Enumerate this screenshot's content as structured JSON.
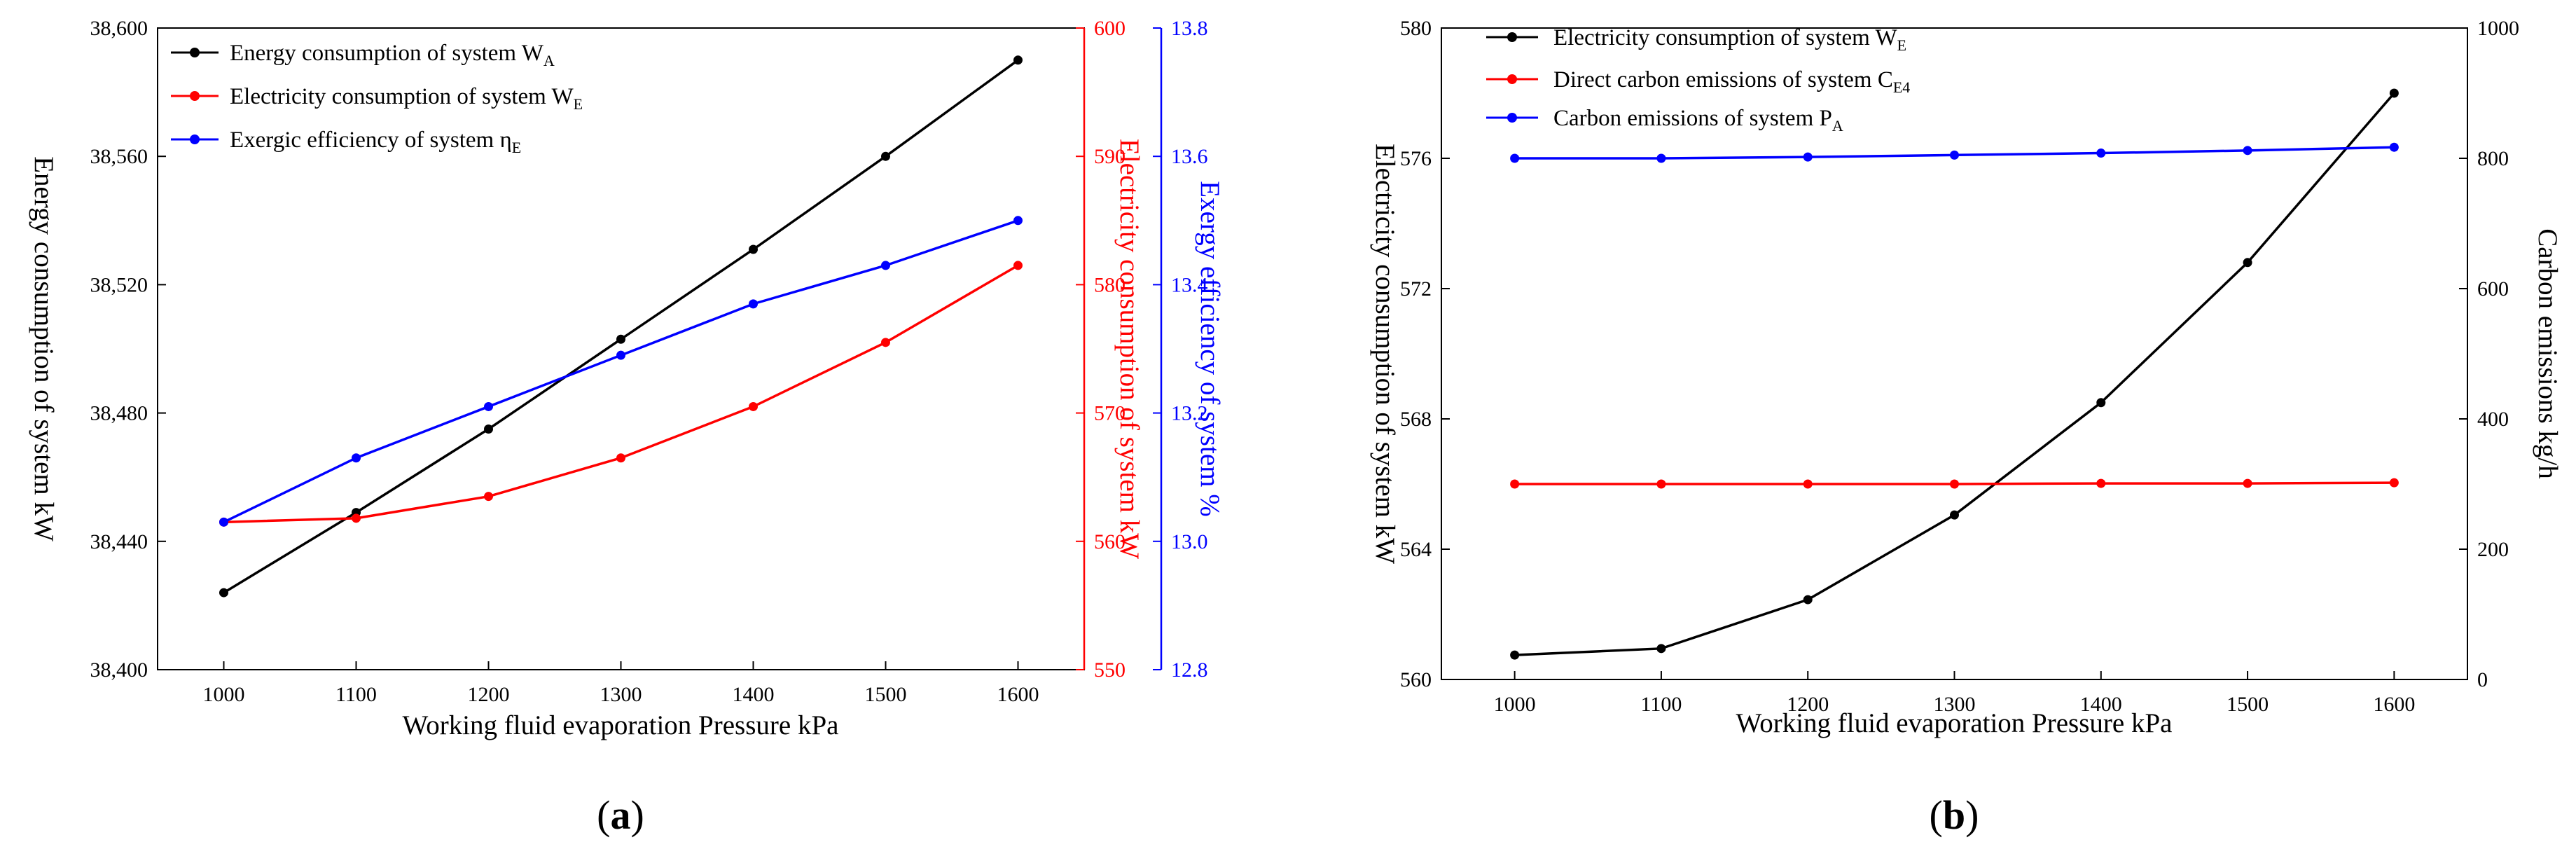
{
  "figure": {
    "panels": [
      "(a)",
      "(b)"
    ]
  },
  "chart_data": [
    {
      "type": "line",
      "panel_label": {
        "open": "(",
        "letter": "a",
        "close": ")"
      },
      "x": [
        1000,
        1100,
        1200,
        1300,
        1400,
        1500,
        1600
      ],
      "xlabel": "Working fluid evaporation Pressure kPa",
      "xlim": [
        950,
        1650
      ],
      "axes": {
        "left": {
          "label": "Energy consumption of system kW",
          "min": 38400,
          "max": 38600,
          "ticks": [
            "38,400",
            "38,440",
            "38,480",
            "38,520",
            "38,560",
            "38,600"
          ],
          "color": "#000000"
        },
        "right1": {
          "label": "Electricity consumption of system kW",
          "min": 550,
          "max": 600,
          "ticks": [
            "550",
            "560",
            "570",
            "580",
            "590",
            "600"
          ],
          "color": "#ff0000"
        },
        "right2": {
          "label": "Exergy efficiency of system %",
          "min": 12.8,
          "max": 13.8,
          "ticks": [
            "12.8",
            "13.0",
            "13.2",
            "13.4",
            "13.6",
            "13.8"
          ],
          "color": "#0000ff"
        }
      },
      "series": [
        {
          "name": "Energy consumption of system W",
          "sub": "A",
          "color": "#000000",
          "axis": "left",
          "values": [
            38424,
            38449,
            38475,
            38503,
            38531,
            38560,
            38590
          ]
        },
        {
          "name": "Electricity consumption of system W",
          "sub": "E",
          "color": "#ff0000",
          "axis": "right1",
          "values": [
            561.5,
            561.8,
            563.5,
            566.5,
            570.5,
            575.5,
            581.5
          ]
        },
        {
          "name": "Exergic efficiency of system η",
          "sub": "E",
          "color": "#0000ff",
          "axis": "right2",
          "values": [
            13.03,
            13.13,
            13.21,
            13.29,
            13.37,
            13.43,
            13.5
          ]
        }
      ],
      "legend": "top-left",
      "grid": false
    },
    {
      "type": "line",
      "panel_label": {
        "open": "(",
        "letter": "b",
        "close": ")"
      },
      "x": [
        1000,
        1100,
        1200,
        1300,
        1400,
        1500,
        1600
      ],
      "xlabel": "Working fluid evaporation Pressure kPa",
      "xlim": [
        950,
        1650
      ],
      "axes": {
        "left": {
          "label": "Electricity consumption of system kW",
          "min": 560,
          "max": 580,
          "ticks": [
            "560",
            "564",
            "568",
            "572",
            "576",
            "580"
          ],
          "color": "#000000"
        },
        "right": {
          "label": "Carbon emissions kg/h",
          "min": 0,
          "max": 1000,
          "ticks": [
            "0",
            "200",
            "400",
            "600",
            "800",
            "1000"
          ],
          "color": "#000000"
        }
      },
      "series": [
        {
          "name": "Electricity consumption of system W",
          "sub": "E",
          "color": "#000000",
          "axis": "left",
          "values": [
            560.75,
            560.95,
            562.45,
            565.05,
            568.5,
            572.8,
            578.0
          ]
        },
        {
          "name": "Direct carbon emissions of system C",
          "sub": "E4",
          "color": "#ff0000",
          "axis": "right",
          "values": [
            300,
            300,
            300,
            300,
            301,
            301,
            302
          ]
        },
        {
          "name": "Carbon emissions of system P",
          "sub": "A",
          "color": "#0000ff",
          "axis": "right",
          "values": [
            800,
            800,
            802,
            805,
            808,
            812,
            817
          ]
        }
      ],
      "legend": "top-left",
      "grid": false
    }
  ]
}
